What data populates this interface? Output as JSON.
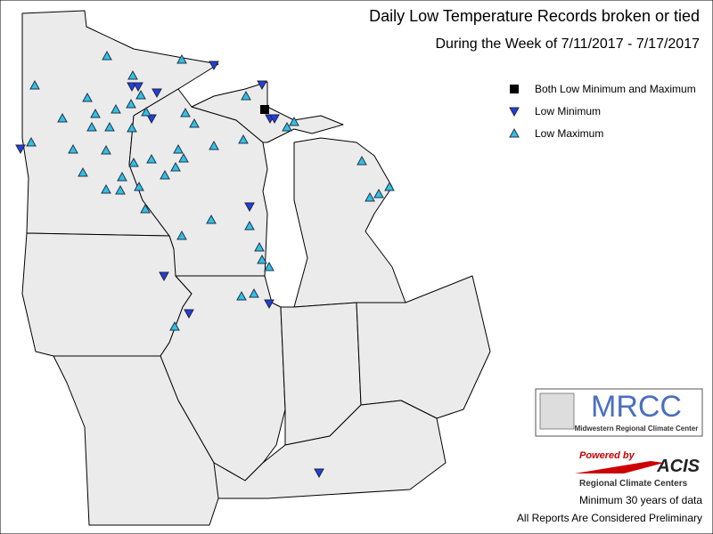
{
  "header": {
    "title": "Daily Low Temperature Records broken or tied",
    "subtitle": "During the Week of 7/11/2017 - 7/17/2017"
  },
  "legend": {
    "items": [
      {
        "label": "Both Low Minimum and Maximum",
        "color": "#000000"
      },
      {
        "label": "Low Minimum",
        "color": "#2040e0"
      },
      {
        "label": "Low Maximum",
        "color": "#30c0e8"
      }
    ]
  },
  "logos": {
    "mrcc": "MRCC",
    "mrcc_name": "Midwestern Regional Climate Center",
    "powered": "Powered by",
    "acis": "ACIS",
    "acis_name": "Regional Climate Centers"
  },
  "notes": [
    "Minimum 30 years of data",
    "All Reports Are Considered Preliminary"
  ]
}
